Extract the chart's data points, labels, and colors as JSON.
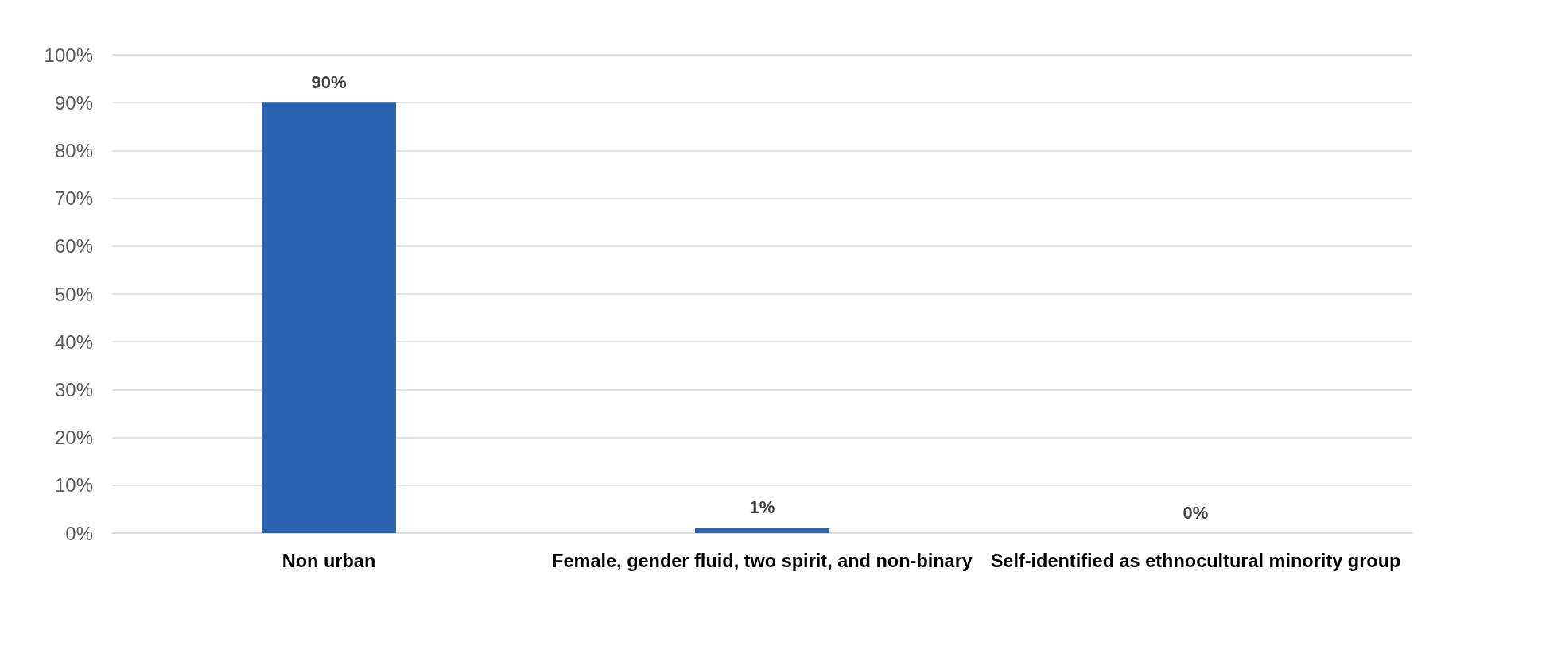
{
  "chart_data": {
    "type": "bar",
    "categories": [
      "Non urban",
      "Female, gender fluid, two spirit, and non-binary",
      "Self-identified as ethnocultural minority group"
    ],
    "values": [
      90,
      1,
      0
    ],
    "color": "#2b63ae",
    "value_labels": [
      "90%",
      "1%",
      "0%"
    ],
    "ylim": [
      0,
      100
    ],
    "yticks": [
      {
        "value": 0,
        "label": "0%"
      },
      {
        "value": 10,
        "label": "10%"
      },
      {
        "value": 20,
        "label": "20%"
      },
      {
        "value": 30,
        "label": "30%"
      },
      {
        "value": 40,
        "label": "40%"
      },
      {
        "value": 50,
        "label": "50%"
      },
      {
        "value": 60,
        "label": "60%"
      },
      {
        "value": 70,
        "label": "70%"
      },
      {
        "value": 80,
        "label": "80%"
      },
      {
        "value": 90,
        "label": "90%"
      },
      {
        "value": 100,
        "label": "100%"
      }
    ],
    "grid": "y"
  }
}
